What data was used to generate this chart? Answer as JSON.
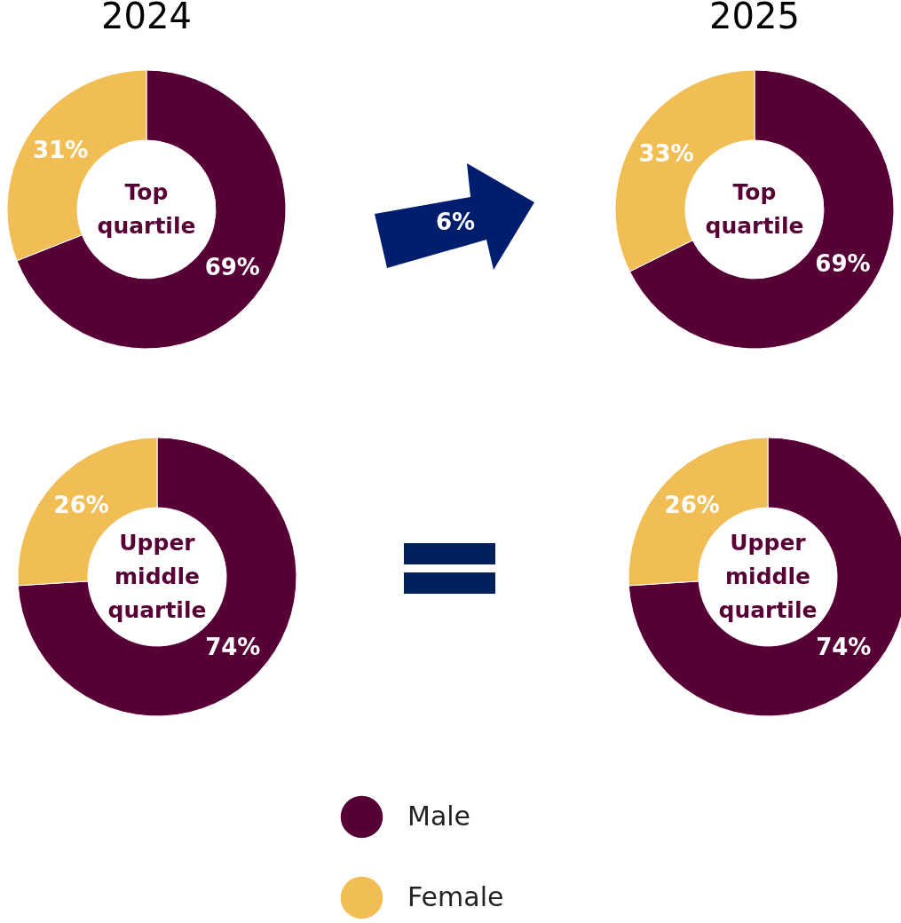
{
  "chart_data": [
    {
      "type": "donut",
      "title": "2024",
      "categories": [
        null,
        null
      ],
      "values": [
        69,
        31
      ],
      "value_labels": [
        "69%",
        "31%"
      ],
      "colors": [
        "#560036",
        "#f0be55"
      ],
      "annotations": [
        "Top quartile"
      ]
    },
    {
      "type": "donut",
      "title": "2025",
      "categories": [
        null,
        null
      ],
      "values": [
        69,
        33
      ],
      "value_labels": [
        "69%",
        "33%"
      ],
      "colors": [
        "#560036",
        "#f0be55"
      ],
      "annotations": [
        "Top quartile",
        "6%"
      ]
    },
    {
      "type": "donut",
      "categories": [
        "Male",
        "Female"
      ],
      "values": [
        74,
        26
      ],
      "value_labels": [
        "74%",
        "26%"
      ],
      "colors": [
        "#560036",
        "#f0be55"
      ],
      "annotations": [
        "Upper middle quartile"
      ],
      "legend": "bottom"
    },
    {
      "type": "donut",
      "categories": [
        null,
        null
      ],
      "values": [
        74,
        26
      ],
      "value_labels": [
        "74%",
        "26%"
      ],
      "colors": [
        "#560036",
        "#f0be55"
      ],
      "annotations": [
        "Upper middle quartile"
      ]
    }
  ]
}
